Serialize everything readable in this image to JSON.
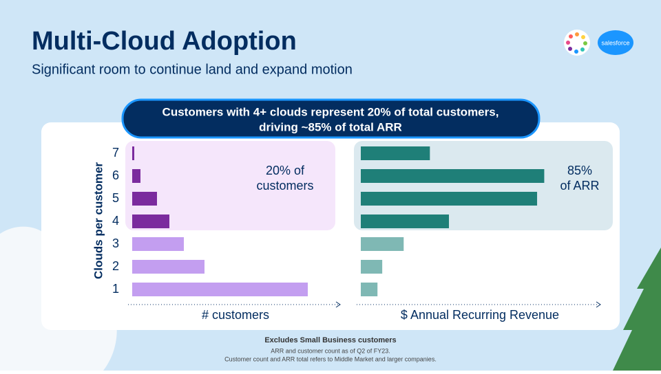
{
  "title": "Multi-Cloud Adoption",
  "subtitle": "Significant room to continue land and expand motion",
  "logo_text": "salesforce",
  "banner": [
    "Customers with 4+ clouds represent 20% of total customers,",
    "driving ~85% of total ARR"
  ],
  "footnotes": [
    "Excludes Small Business customers",
    "ARR and customer count as of Q2 of FY23.",
    "Customer count and ARR total refers to Middle Market and larger companies."
  ],
  "chart_data": {
    "type": "bar",
    "orientation": "horizontal",
    "y_label": "Clouds per customer",
    "categories": [
      "1",
      "2",
      "3",
      "4",
      "5",
      "6",
      "7"
    ],
    "xlim": [
      0,
      100
    ],
    "series": [
      {
        "name": "# customers",
        "values": [
          85,
          35,
          25,
          18,
          12,
          4,
          1
        ],
        "colors": [
          "#c39ef0",
          "#c39ef0",
          "#c39ef0",
          "#7b2b9e",
          "#7b2b9e",
          "#7b2b9e",
          "#7b2b9e"
        ],
        "annotation": [
          "20% of",
          "customers"
        ]
      },
      {
        "name": "$ Annual Recurring Revenue",
        "values": [
          7,
          9,
          18,
          37,
          74,
          77,
          29
        ],
        "colors": [
          "#7fb8b4",
          "#7fb8b4",
          "#7fb8b4",
          "#1f7f78",
          "#1f7f78",
          "#1f7f78",
          "#1f7f78"
        ],
        "annotation": [
          "85%",
          "of ARR"
        ]
      }
    ]
  }
}
